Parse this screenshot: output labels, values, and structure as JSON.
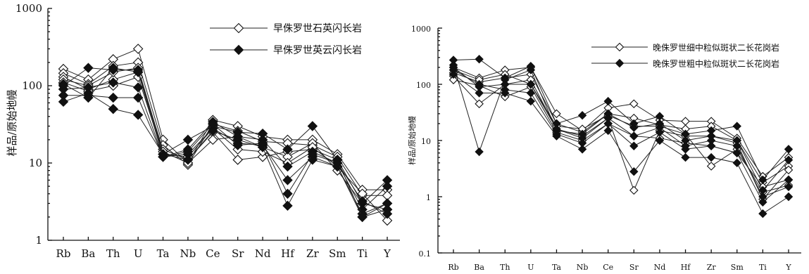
{
  "chart_data": [
    {
      "type": "line",
      "log_y": true,
      "ylim": [
        1,
        1000
      ],
      "yticks": [
        "1",
        "10",
        "100",
        "1000"
      ],
      "ylabel": "样品/原始地幔",
      "categories": [
        "Rb",
        "Ba",
        "Th",
        "U",
        "Ta",
        "Nb",
        "Ce",
        "Sr",
        "Nd",
        "Hf",
        "Zr",
        "Sm",
        "Ti",
        "Y"
      ],
      "legend": [
        {
          "label": "早侏罗世石英闪长岩",
          "marker": "hollow-diamond"
        },
        {
          "label": "早侏罗世英云闪长岩",
          "marker": "solid-diamond"
        }
      ],
      "series": [
        {
          "marker": "hollow-diamond",
          "values": [
            165,
            120,
            220,
            300,
            20,
            10,
            36,
            30,
            22,
            20,
            20,
            13,
            4.5,
            4.5
          ]
        },
        {
          "marker": "hollow-diamond",
          "values": [
            145,
            105,
            180,
            200,
            17,
            9.5,
            32,
            26,
            19,
            18,
            17,
            12,
            3.8,
            3.8
          ]
        },
        {
          "marker": "hollow-diamond",
          "values": [
            130,
            90,
            120,
            150,
            15,
            11,
            25,
            11,
            12,
            14,
            15,
            11,
            2.0,
            3.0
          ]
        },
        {
          "marker": "hollow-diamond",
          "values": [
            120,
            100,
            150,
            170,
            14,
            10,
            20,
            22,
            16,
            12,
            18,
            8,
            3.0,
            2.5
          ]
        },
        {
          "marker": "hollow-diamond",
          "values": [
            110,
            85,
            100,
            130,
            13,
            12,
            28,
            15,
            14,
            10,
            16,
            9,
            4.0,
            1.8
          ]
        },
        {
          "marker": "solid-diamond",
          "values": [
            100,
            170,
            160,
            160,
            13,
            20,
            30,
            25,
            24,
            15,
            30,
            11,
            3.0,
            6.0
          ]
        },
        {
          "marker": "solid-diamond",
          "values": [
            90,
            95,
            110,
            95,
            12,
            15,
            34,
            22,
            20,
            9,
            14,
            10,
            2.5,
            5.0
          ]
        },
        {
          "marker": "solid-diamond",
          "values": [
            75,
            75,
            70,
            70,
            12,
            13,
            28,
            18,
            17,
            6,
            12,
            9,
            2.2,
            3.0
          ]
        },
        {
          "marker": "solid-diamond",
          "values": [
            62,
            80,
            50,
            42,
            13,
            11,
            26,
            20,
            16,
            2.8,
            11,
            9,
            2.0,
            2.5
          ]
        },
        {
          "marker": "solid-diamond",
          "values": [
            105,
            70,
            170,
            150,
            12,
            14,
            32,
            17,
            18,
            4,
            13,
            10,
            3.2,
            2.2
          ]
        }
      ]
    },
    {
      "type": "line",
      "log_y": true,
      "ylim": [
        0.1,
        1000
      ],
      "yticks": [
        "0.1",
        "1",
        "10",
        "100",
        "1000"
      ],
      "ylabel": "样品/原始地幔",
      "categories": [
        "Rb",
        "Ba",
        "Th",
        "U",
        "Ta",
        "Nb",
        "Ce",
        "Sr",
        "Nd",
        "Hf",
        "Zr",
        "Sm",
        "Ti",
        "Y"
      ],
      "legend": [
        {
          "label": "晚侏罗世细中粒似斑状二长花岗岩",
          "marker": "hollow-diamond"
        },
        {
          "label": "晚侏罗世粗中粒似斑状二长花岗岩",
          "marker": "solid-diamond"
        }
      ],
      "series": [
        {
          "marker": "hollow-diamond",
          "values": [
            200,
            130,
            180,
            200,
            30,
            15,
            38,
            45,
            23,
            22,
            22,
            11,
            2.3,
            5.0
          ]
        },
        {
          "marker": "hollow-diamond",
          "values": [
            160,
            110,
            130,
            150,
            20,
            14,
            30,
            25,
            19,
            16,
            18,
            10,
            1.8,
            3.5
          ]
        },
        {
          "marker": "hollow-diamond",
          "values": [
            140,
            45,
            100,
            120,
            16,
            12,
            25,
            1.3,
            15,
            12,
            12,
            9,
            0.9,
            3.0
          ]
        },
        {
          "marker": "hollow-diamond",
          "values": [
            120,
            95,
            60,
            90,
            14,
            10,
            20,
            12,
            11,
            9,
            8,
            6,
            1.5,
            2.0
          ]
        },
        {
          "marker": "hollow-diamond",
          "values": [
            180,
            120,
            150,
            100,
            18,
            16,
            28,
            18,
            18,
            13,
            3.5,
            7,
            1.2,
            1.6
          ]
        },
        {
          "marker": "solid-diamond",
          "values": [
            270,
            280,
            130,
            210,
            20,
            28,
            50,
            20,
            27,
            13,
            15,
            18,
            2.0,
            7.0
          ]
        },
        {
          "marker": "solid-diamond",
          "values": [
            220,
            6.3,
            120,
            180,
            15,
            13,
            30,
            17,
            20,
            10,
            12,
            10,
            1.3,
            4.5
          ]
        },
        {
          "marker": "solid-diamond",
          "values": [
            180,
            100,
            80,
            70,
            13,
            9,
            20,
            8,
            14,
            7,
            8,
            6,
            0.8,
            2.0
          ]
        },
        {
          "marker": "solid-diamond",
          "values": [
            150,
            70,
            70,
            50,
            12,
            7,
            15,
            2.8,
            10,
            5,
            5,
            4,
            0.5,
            1.0
          ]
        },
        {
          "marker": "solid-diamond",
          "values": [
            200,
            90,
            100,
            100,
            16,
            11,
            25,
            12,
            17,
            8,
            10,
            8,
            1.0,
            1.5
          ]
        }
      ]
    }
  ]
}
